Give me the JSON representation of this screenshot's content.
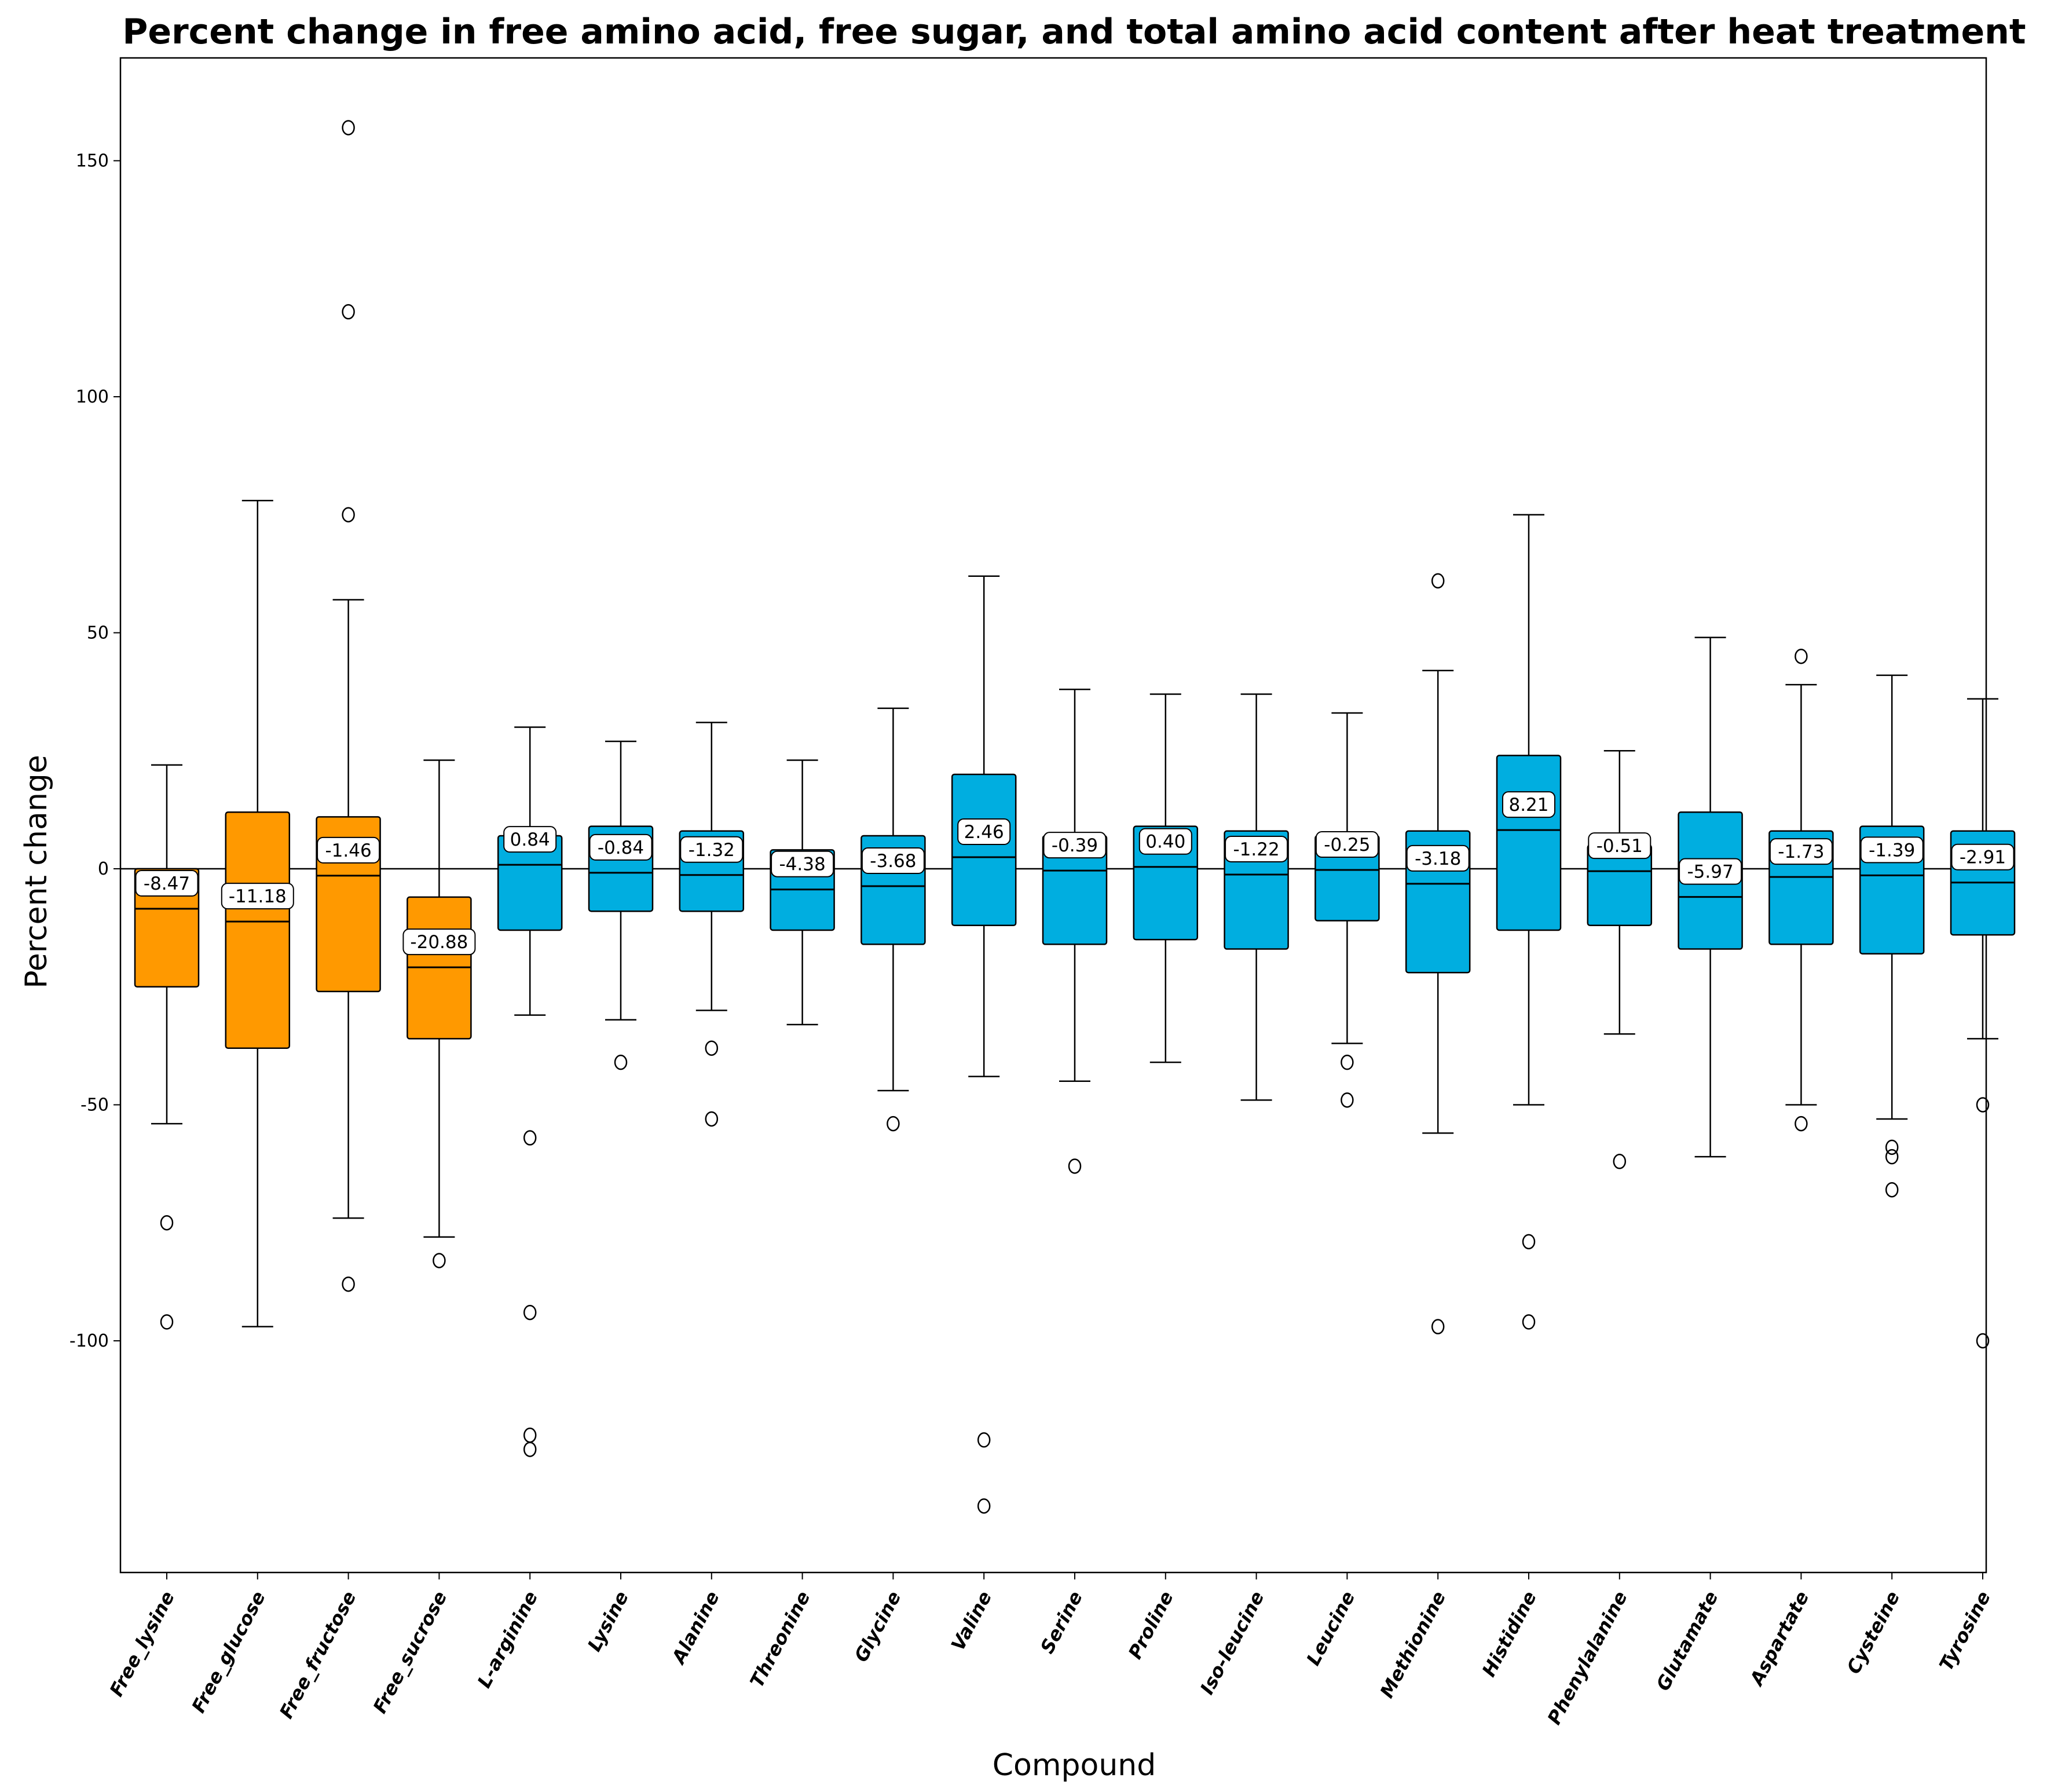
{
  "chart_data": {
    "type": "box",
    "title": "Percent change in free amino acid, free sugar, and total amino acid content after heat treatment",
    "xlabel": "Compound",
    "ylabel": "Percent change",
    "ylim": [
      -150,
      170
    ],
    "yticks": [
      -100,
      -50,
      0,
      50,
      100,
      150
    ],
    "reference_line": 0,
    "colors": {
      "sugar_group": "#ff9900",
      "amino_group": "#00aee0",
      "edge": "#000000"
    },
    "series": [
      {
        "name": "Free_lysine",
        "group": "sugar_group",
        "whisker_low": -54,
        "q1": -25,
        "median": -8.47,
        "q3": 0,
        "whisker_high": 22,
        "outliers": [
          -75,
          -96
        ],
        "label": "-8.47"
      },
      {
        "name": "Free_glucose",
        "group": "sugar_group",
        "whisker_low": -97,
        "q1": -38,
        "median": -11.18,
        "q3": 12,
        "whisker_high": 78,
        "outliers": [],
        "label": "-11.18"
      },
      {
        "name": "Free_fructose",
        "group": "sugar_group",
        "whisker_low": -74,
        "q1": -26,
        "median": -1.46,
        "q3": 11,
        "whisker_high": 57,
        "outliers": [
          157,
          118,
          75,
          -88
        ],
        "label": "-1.46"
      },
      {
        "name": "Free_sucrose",
        "group": "sugar_group",
        "whisker_low": -78,
        "q1": -36,
        "median": -20.88,
        "q3": -6,
        "whisker_high": 23,
        "outliers": [
          -83
        ],
        "label": "-20.88"
      },
      {
        "name": "L-arginine",
        "group": "amino_group",
        "whisker_low": -31,
        "q1": -13,
        "median": 0.84,
        "q3": 7,
        "whisker_high": 30,
        "outliers": [
          -57,
          -94,
          -120,
          -123
        ],
        "label": "0.84"
      },
      {
        "name": "Lysine",
        "group": "amino_group",
        "whisker_low": -32,
        "q1": -9,
        "median": -0.84,
        "q3": 9,
        "whisker_high": 27,
        "outliers": [
          -41
        ],
        "label": "-0.84"
      },
      {
        "name": "Alanine",
        "group": "amino_group",
        "whisker_low": -30,
        "q1": -9,
        "median": -1.32,
        "q3": 8,
        "whisker_high": 31,
        "outliers": [
          -38,
          -53
        ],
        "label": "-1.32"
      },
      {
        "name": "Threonine",
        "group": "amino_group",
        "whisker_low": -33,
        "q1": -13,
        "median": -4.38,
        "q3": 4,
        "whisker_high": 23,
        "outliers": [],
        "label": "-4.38"
      },
      {
        "name": "Glycine",
        "group": "amino_group",
        "whisker_low": -47,
        "q1": -16,
        "median": -3.68,
        "q3": 7,
        "whisker_high": 34,
        "outliers": [
          -54
        ],
        "label": "-3.68"
      },
      {
        "name": "Valine",
        "group": "amino_group",
        "whisker_low": -44,
        "q1": -12,
        "median": 2.46,
        "q3": 20,
        "whisker_high": 62,
        "outliers": [
          -121,
          -135
        ],
        "label": "2.46"
      },
      {
        "name": "Serine",
        "group": "amino_group",
        "whisker_low": -45,
        "q1": -16,
        "median": -0.39,
        "q3": 7,
        "whisker_high": 38,
        "outliers": [
          -63
        ],
        "label": "-0.39"
      },
      {
        "name": "Proline",
        "group": "amino_group",
        "whisker_low": -41,
        "q1": -15,
        "median": 0.4,
        "q3": 9,
        "whisker_high": 37,
        "outliers": [],
        "label": "0.40"
      },
      {
        "name": "Iso-leucine",
        "group": "amino_group",
        "whisker_low": -49,
        "q1": -17,
        "median": -1.22,
        "q3": 8,
        "whisker_high": 37,
        "outliers": [],
        "label": "-1.22"
      },
      {
        "name": "Leucine",
        "group": "amino_group",
        "whisker_low": -37,
        "q1": -11,
        "median": -0.25,
        "q3": 7,
        "whisker_high": 33,
        "outliers": [
          -41,
          -49
        ],
        "label": "-0.25"
      },
      {
        "name": "Methionine",
        "group": "amino_group",
        "whisker_low": -56,
        "q1": -22,
        "median": -3.18,
        "q3": 8,
        "whisker_high": 42,
        "outliers": [
          61,
          -97
        ],
        "label": "-3.18"
      },
      {
        "name": "Histidine",
        "group": "amino_group",
        "whisker_low": -50,
        "q1": -13,
        "median": 8.21,
        "q3": 24,
        "whisker_high": 75,
        "outliers": [
          -79,
          -96
        ],
        "label": "8.21"
      },
      {
        "name": "Phenylalanine",
        "group": "amino_group",
        "whisker_low": -35,
        "q1": -12,
        "median": -0.51,
        "q3": 5,
        "whisker_high": 25,
        "outliers": [
          -62
        ],
        "label": "-0.51"
      },
      {
        "name": "Glutamate",
        "group": "amino_group",
        "whisker_low": -61,
        "q1": -17,
        "median": -5.97,
        "q3": 12,
        "whisker_high": 49,
        "outliers": [],
        "label": "-5.97"
      },
      {
        "name": "Aspartate",
        "group": "amino_group",
        "whisker_low": -50,
        "q1": -16,
        "median": -1.73,
        "q3": 8,
        "whisker_high": 39,
        "outliers": [
          45,
          -54
        ],
        "label": "-1.73"
      },
      {
        "name": "Cysteine",
        "group": "amino_group",
        "whisker_low": -53,
        "q1": -18,
        "median": -1.39,
        "q3": 9,
        "whisker_high": 41,
        "outliers": [
          -59,
          -61,
          -68
        ],
        "label": "-1.39"
      },
      {
        "name": "Tyrosine",
        "group": "amino_group",
        "whisker_low": -36,
        "q1": -14,
        "median": -2.91,
        "q3": 8,
        "whisker_high": 36,
        "outliers": [
          -50,
          -100
        ],
        "label": "-2.91"
      }
    ]
  }
}
